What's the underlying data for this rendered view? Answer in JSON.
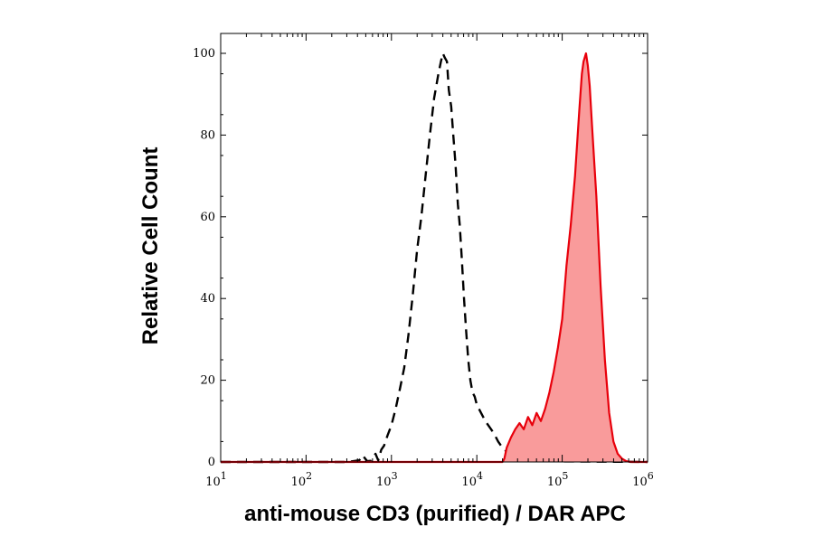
{
  "chart_data": {
    "type": "area",
    "xlabel": "anti-mouse CD3 (purified) / DAR APC",
    "ylabel": "Relative Cell Count",
    "xscale": "log",
    "xlim": [
      10,
      1000000
    ],
    "ylim": [
      0,
      100
    ],
    "y_ticks": [
      0,
      20,
      40,
      60,
      80,
      100
    ],
    "x_ticks": [
      {
        "value": 10,
        "base": "10",
        "exp": "1"
      },
      {
        "value": 100,
        "base": "10",
        "exp": "2"
      },
      {
        "value": 1000,
        "base": "10",
        "exp": "3"
      },
      {
        "value": 10000,
        "base": "10",
        "exp": "4"
      },
      {
        "value": 100000,
        "base": "10",
        "exp": "5"
      },
      {
        "value": 1000000,
        "base": "10",
        "exp": "6"
      }
    ],
    "series": [
      {
        "style": "dashed-line",
        "color": "#000000",
        "points": [
          [
            10,
            0
          ],
          [
            300,
            0
          ],
          [
            420,
            0.4
          ],
          [
            460,
            1.6
          ],
          [
            520,
            0.2
          ],
          [
            580,
            0.3
          ],
          [
            650,
            2.0
          ],
          [
            700,
            0.4
          ],
          [
            760,
            3.0
          ],
          [
            820,
            4.0
          ],
          [
            900,
            6.5
          ],
          [
            1000,
            9.0
          ],
          [
            1120,
            13.0
          ],
          [
            1260,
            18.0
          ],
          [
            1410,
            23.0
          ],
          [
            1580,
            31.0
          ],
          [
            1780,
            41.0
          ],
          [
            2000,
            52.0
          ],
          [
            2240,
            60.0
          ],
          [
            2510,
            70.0
          ],
          [
            2820,
            80.0
          ],
          [
            3160,
            89.0
          ],
          [
            3550,
            95.0
          ],
          [
            3800,
            98.0
          ],
          [
            4000,
            100.0
          ],
          [
            4200,
            99.0
          ],
          [
            4470,
            98.0
          ],
          [
            4700,
            91.0
          ],
          [
            5010,
            87.0
          ],
          [
            5300,
            80.0
          ],
          [
            5620,
            73.0
          ],
          [
            6000,
            63.0
          ],
          [
            6310,
            58.0
          ],
          [
            6700,
            49.0
          ],
          [
            7080,
            40.0
          ],
          [
            7500,
            32.0
          ],
          [
            7940,
            25.0
          ],
          [
            8400,
            20.0
          ],
          [
            8910,
            17.0
          ],
          [
            9440,
            16.0
          ],
          [
            10000,
            14.0
          ],
          [
            11220,
            12.0
          ],
          [
            12590,
            10.0
          ],
          [
            14130,
            8.5
          ],
          [
            15850,
            7.0
          ],
          [
            17780,
            5.0
          ],
          [
            19950,
            3.5
          ],
          [
            22390,
            2.5
          ],
          [
            25120,
            3.0
          ],
          [
            28180,
            1.5
          ],
          [
            31620,
            0.5
          ],
          [
            40000,
            0.2
          ],
          [
            1000000,
            0
          ]
        ]
      },
      {
        "style": "filled",
        "color": "#e8000b",
        "fill": "#f99b9b",
        "points": [
          [
            10,
            0
          ],
          [
            20000,
            0
          ],
          [
            21000,
            0.8
          ],
          [
            22390,
            3.5
          ],
          [
            25120,
            6.0
          ],
          [
            28180,
            8.0
          ],
          [
            31620,
            9.5
          ],
          [
            35480,
            8.0
          ],
          [
            39810,
            11.0
          ],
          [
            44670,
            9.0
          ],
          [
            50120,
            12.0
          ],
          [
            56230,
            10.0
          ],
          [
            63100,
            13.0
          ],
          [
            70790,
            17.0
          ],
          [
            79430,
            22.0
          ],
          [
            89130,
            28.0
          ],
          [
            100000,
            35.0
          ],
          [
            112200,
            48.0
          ],
          [
            125900,
            58.0
          ],
          [
            141300,
            70.0
          ],
          [
            158500,
            86.0
          ],
          [
            170000,
            95.0
          ],
          [
            177800,
            98.0
          ],
          [
            190000,
            100.0
          ],
          [
            199500,
            97.0
          ],
          [
            210000,
            92.0
          ],
          [
            223900,
            82.0
          ],
          [
            251200,
            65.0
          ],
          [
            281800,
            43.0
          ],
          [
            316200,
            25.0
          ],
          [
            354800,
            12.0
          ],
          [
            398100,
            5.0
          ],
          [
            446700,
            2.0
          ],
          [
            501200,
            0.8
          ],
          [
            562300,
            0.2
          ],
          [
            631000,
            0
          ],
          [
            1000000,
            0
          ]
        ]
      }
    ]
  }
}
